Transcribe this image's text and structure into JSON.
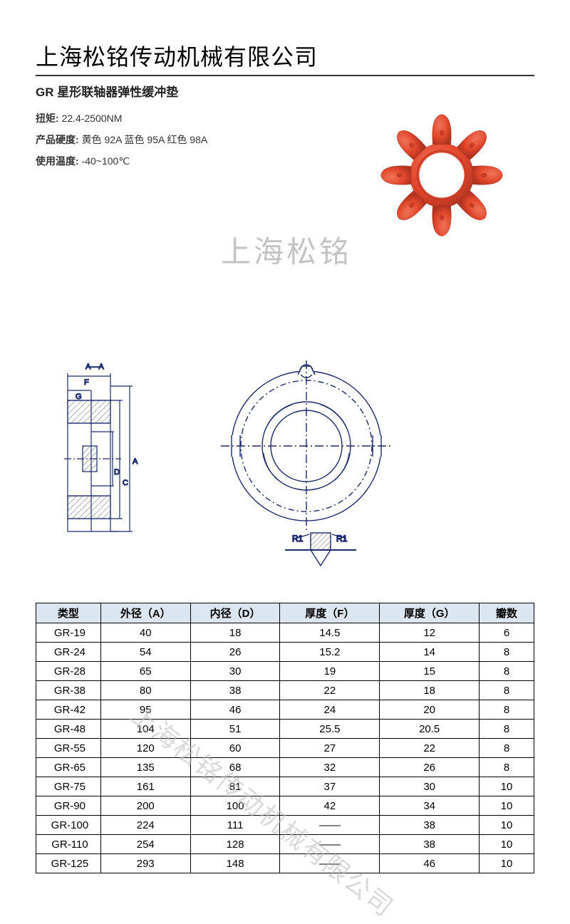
{
  "header": {
    "company": "上海松铭传动机械有限公司",
    "product_title": "GR 星形联轴器弹性缓冲垫"
  },
  "specs": {
    "torque_label": "扭矩:",
    "torque_value": "22.4-2500NM",
    "hardness_label": "产品硬度:",
    "hardness_value": "黄色 92A  蓝色 95A  红色 98A",
    "temp_label": "使用温度:",
    "temp_value": "-40~100℃"
  },
  "watermark": {
    "text1": "上海松铭",
    "text2": "上海松铭传动机械有限公司"
  },
  "product_image": {
    "color": "#e3482d",
    "type": "star-coupling-spider",
    "teeth": 8
  },
  "diagram": {
    "section_label": "A—A",
    "dim_labels": [
      "F",
      "G",
      "D",
      "C",
      "A"
    ],
    "radius_label": "R1",
    "line_color": "#1a2a6c",
    "hatch_color": "#888888"
  },
  "table": {
    "header_bg": "#dbe6f0",
    "columns": [
      "类型",
      "外径（A）",
      "内径（D）",
      "厚度（F）",
      "厚度（G）",
      "瓣数"
    ],
    "rows": [
      [
        "GR-19",
        "40",
        "18",
        "14.5",
        "12",
        "6"
      ],
      [
        "GR-24",
        "54",
        "26",
        "15.2",
        "14",
        "8"
      ],
      [
        "GR-28",
        "65",
        "30",
        "19",
        "15",
        "8"
      ],
      [
        "GR-38",
        "80",
        "38",
        "22",
        "18",
        "8"
      ],
      [
        "GR-42",
        "95",
        "46",
        "24",
        "20",
        "8"
      ],
      [
        "GR-48",
        "104",
        "51",
        "25.5",
        "20.5",
        "8"
      ],
      [
        "GR-55",
        "120",
        "60",
        "27",
        "22",
        "8"
      ],
      [
        "GR-65",
        "135",
        "68",
        "32",
        "26",
        "8"
      ],
      [
        "GR-75",
        "161",
        "81",
        "37",
        "30",
        "10"
      ],
      [
        "GR-90",
        "200",
        "100",
        "42",
        "34",
        "10"
      ],
      [
        "GR-100",
        "224",
        "111",
        "——",
        "38",
        "10"
      ],
      [
        "GR-110",
        "254",
        "128",
        "——",
        "38",
        "10"
      ],
      [
        "GR-125",
        "293",
        "148",
        "——",
        "46",
        "10"
      ]
    ]
  }
}
